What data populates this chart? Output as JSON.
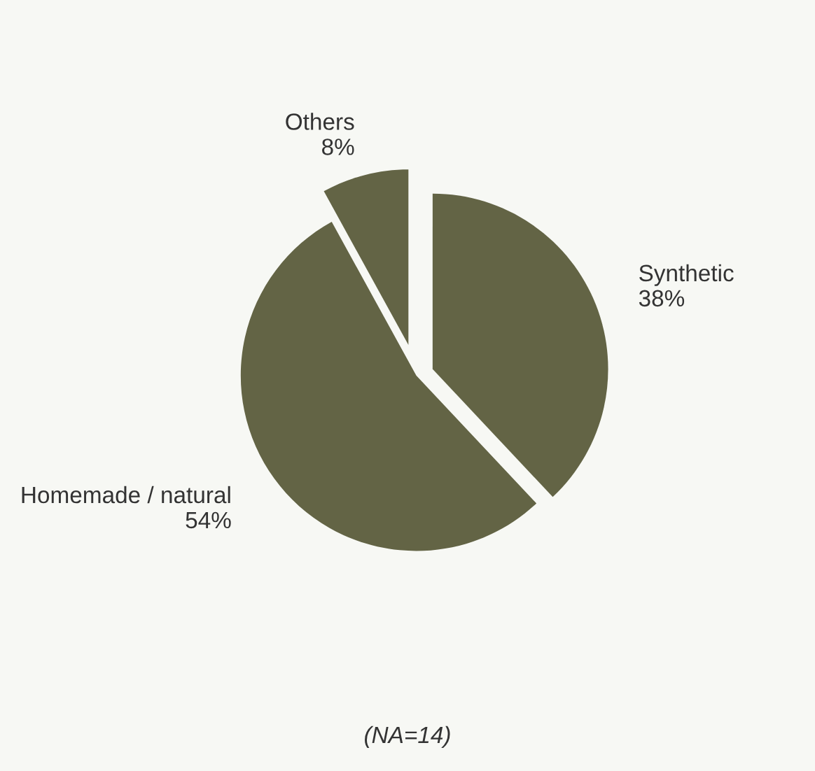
{
  "chart_data": {
    "type": "pie",
    "categories": [
      "Synthetic",
      "Homemade / natural",
      "Others"
    ],
    "values": [
      38,
      54,
      8
    ],
    "colors": [
      "#636445",
      "#636445",
      "#636445"
    ],
    "value_labels": [
      "38%",
      "54%",
      "8%"
    ],
    "annotations": [
      "(NA=14)"
    ]
  }
}
